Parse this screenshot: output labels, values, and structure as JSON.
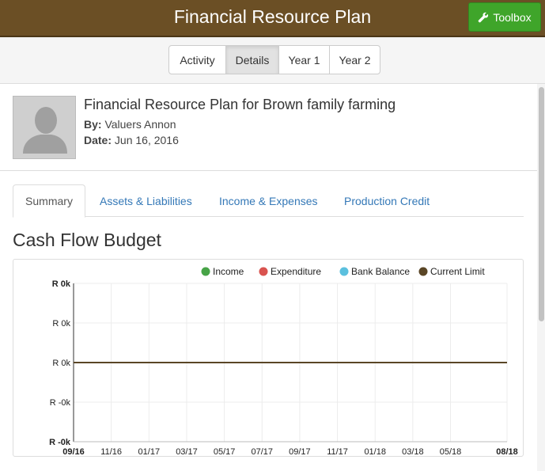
{
  "header": {
    "title": "Financial Resource Plan",
    "toolbox_label": "Toolbox"
  },
  "subnav": {
    "buttons": [
      "Activity",
      "Details",
      "Year 1",
      "Year 2"
    ],
    "active": "Details"
  },
  "plan": {
    "title": "Financial Resource Plan for Brown family farming",
    "by_label": "By:",
    "by_value": "Valuers Annon",
    "date_label": "Date:",
    "date_value": "Jun 16, 2016"
  },
  "tabs": [
    "Summary",
    "Assets & Liabilities",
    "Income & Expenses",
    "Production Credit"
  ],
  "active_tab": "Summary",
  "section_title": "Cash Flow Budget",
  "colors": {
    "brand_bar": "#6b4f25",
    "toolbox": "#3fa52a",
    "link": "#3478b7"
  },
  "chart_data": {
    "type": "line",
    "x": [
      "09/16",
      "11/16",
      "01/17",
      "03/17",
      "05/17",
      "07/17",
      "09/17",
      "11/17",
      "01/18",
      "03/18",
      "05/18",
      "08/18"
    ],
    "y_tick_labels": [
      "R 0k",
      "R 0k",
      "R 0k",
      "R -0k",
      "R -0k"
    ],
    "legend": [
      {
        "name": "Income",
        "color": "#47a447"
      },
      {
        "name": "Expenditure",
        "color": "#d9534f"
      },
      {
        "name": "Bank Balance",
        "color": "#5bc0de"
      },
      {
        "name": "Current Limit",
        "color": "#5a4626"
      }
    ],
    "legend_position": "top-right",
    "grid": true,
    "series": [
      {
        "name": "Current Limit",
        "values": [
          0,
          0,
          0,
          0,
          0,
          0,
          0,
          0,
          0,
          0,
          0,
          0
        ]
      }
    ]
  }
}
